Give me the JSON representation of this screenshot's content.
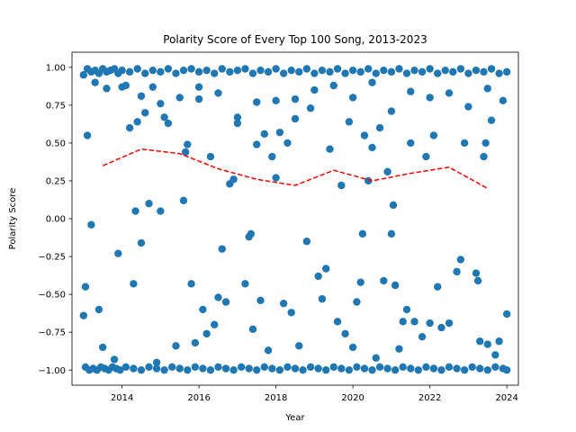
{
  "chart_data": {
    "type": "scatter",
    "title": "Polarity Score of Every Top 100 Song, 2013-2023",
    "xlabel": "Year",
    "ylabel": "Polarity Score",
    "xlim": [
      2012.7,
      2024.3
    ],
    "ylim": [
      -1.1,
      1.1
    ],
    "x_ticks": [
      2014,
      2016,
      2018,
      2020,
      2022,
      2024
    ],
    "y_ticks": [
      -1.0,
      -0.75,
      -0.5,
      -0.25,
      0.0,
      0.25,
      0.5,
      0.75,
      1.0
    ],
    "y_tick_labels": [
      "−1.00",
      "−0.75",
      "−0.50",
      "−0.25",
      "0.00",
      "0.25",
      "0.50",
      "0.75",
      "1.00"
    ],
    "grid": false,
    "colors": {
      "points": "#1f77b4",
      "trend": "#ff0000"
    },
    "series": [
      {
        "kind": "scatter",
        "points": [
          [
            2013.0,
            0.95
          ],
          [
            2013.1,
            0.99
          ],
          [
            2013.2,
            0.97
          ],
          [
            2013.3,
            0.98
          ],
          [
            2013.4,
            0.96
          ],
          [
            2013.5,
            0.99
          ],
          [
            2013.6,
            0.97
          ],
          [
            2013.7,
            0.98
          ],
          [
            2013.8,
            0.99
          ],
          [
            2013.9,
            0.96
          ],
          [
            2014.0,
            0.98
          ],
          [
            2014.2,
            0.97
          ],
          [
            2014.4,
            0.99
          ],
          [
            2014.6,
            0.96
          ],
          [
            2014.8,
            0.98
          ],
          [
            2015.0,
            0.97
          ],
          [
            2015.2,
            0.99
          ],
          [
            2015.4,
            0.96
          ],
          [
            2015.6,
            0.98
          ],
          [
            2015.8,
            0.99
          ],
          [
            2016.0,
            0.97
          ],
          [
            2016.2,
            0.98
          ],
          [
            2016.4,
            0.96
          ],
          [
            2016.6,
            0.99
          ],
          [
            2016.8,
            0.97
          ],
          [
            2017.0,
            0.98
          ],
          [
            2017.2,
            0.99
          ],
          [
            2017.4,
            0.96
          ],
          [
            2017.6,
            0.98
          ],
          [
            2017.8,
            0.97
          ],
          [
            2018.0,
            0.99
          ],
          [
            2018.2,
            0.96
          ],
          [
            2018.4,
            0.98
          ],
          [
            2018.6,
            0.97
          ],
          [
            2018.8,
            0.99
          ],
          [
            2019.0,
            0.96
          ],
          [
            2019.2,
            0.98
          ],
          [
            2019.4,
            0.97
          ],
          [
            2019.6,
            0.99
          ],
          [
            2019.8,
            0.96
          ],
          [
            2020.0,
            0.98
          ],
          [
            2020.2,
            0.97
          ],
          [
            2020.4,
            0.99
          ],
          [
            2020.6,
            0.96
          ],
          [
            2020.8,
            0.98
          ],
          [
            2021.0,
            0.97
          ],
          [
            2021.2,
            0.99
          ],
          [
            2021.4,
            0.96
          ],
          [
            2021.6,
            0.98
          ],
          [
            2021.8,
            0.97
          ],
          [
            2022.0,
            0.99
          ],
          [
            2022.2,
            0.96
          ],
          [
            2022.4,
            0.98
          ],
          [
            2022.6,
            0.97
          ],
          [
            2022.8,
            0.99
          ],
          [
            2023.0,
            0.96
          ],
          [
            2023.2,
            0.98
          ],
          [
            2023.4,
            0.97
          ],
          [
            2023.6,
            0.99
          ],
          [
            2023.8,
            0.96
          ],
          [
            2024.0,
            0.97
          ],
          [
            2013.05,
            -0.98
          ],
          [
            2013.15,
            -1.0
          ],
          [
            2013.25,
            -0.99
          ],
          [
            2013.35,
            -1.0
          ],
          [
            2013.45,
            -0.98
          ],
          [
            2013.55,
            -0.99
          ],
          [
            2013.65,
            -1.0
          ],
          [
            2013.75,
            -0.98
          ],
          [
            2013.85,
            -0.99
          ],
          [
            2013.95,
            -1.0
          ],
          [
            2014.1,
            -0.98
          ],
          [
            2014.3,
            -0.99
          ],
          [
            2014.5,
            -1.0
          ],
          [
            2014.7,
            -0.98
          ],
          [
            2014.9,
            -0.99
          ],
          [
            2015.1,
            -1.0
          ],
          [
            2015.3,
            -0.98
          ],
          [
            2015.5,
            -0.99
          ],
          [
            2015.7,
            -1.0
          ],
          [
            2015.9,
            -0.98
          ],
          [
            2016.1,
            -0.99
          ],
          [
            2016.3,
            -1.0
          ],
          [
            2016.5,
            -0.98
          ],
          [
            2016.7,
            -0.99
          ],
          [
            2016.9,
            -1.0
          ],
          [
            2017.1,
            -0.98
          ],
          [
            2017.3,
            -0.99
          ],
          [
            2017.5,
            -1.0
          ],
          [
            2017.7,
            -0.98
          ],
          [
            2017.9,
            -0.99
          ],
          [
            2018.1,
            -1.0
          ],
          [
            2018.3,
            -0.98
          ],
          [
            2018.5,
            -0.99
          ],
          [
            2018.7,
            -1.0
          ],
          [
            2018.9,
            -0.98
          ],
          [
            2019.1,
            -0.99
          ],
          [
            2019.3,
            -1.0
          ],
          [
            2019.5,
            -0.98
          ],
          [
            2019.7,
            -0.99
          ],
          [
            2019.9,
            -1.0
          ],
          [
            2020.1,
            -0.98
          ],
          [
            2020.3,
            -0.99
          ],
          [
            2020.5,
            -1.0
          ],
          [
            2020.7,
            -0.98
          ],
          [
            2020.9,
            -0.99
          ],
          [
            2021.1,
            -1.0
          ],
          [
            2021.3,
            -0.98
          ],
          [
            2021.5,
            -0.99
          ],
          [
            2021.7,
            -1.0
          ],
          [
            2021.9,
            -0.98
          ],
          [
            2022.1,
            -0.99
          ],
          [
            2022.3,
            -1.0
          ],
          [
            2022.5,
            -0.98
          ],
          [
            2022.7,
            -0.99
          ],
          [
            2022.9,
            -1.0
          ],
          [
            2023.1,
            -0.98
          ],
          [
            2023.3,
            -0.99
          ],
          [
            2023.5,
            -1.0
          ],
          [
            2023.7,
            -0.98
          ],
          [
            2023.9,
            -0.99
          ],
          [
            2024.0,
            -1.0
          ],
          [
            2013.0,
            -0.64
          ],
          [
            2013.05,
            -0.45
          ],
          [
            2013.1,
            0.55
          ],
          [
            2013.2,
            -0.04
          ],
          [
            2013.4,
            -0.6
          ],
          [
            2013.5,
            -0.85
          ],
          [
            2013.8,
            -0.93
          ],
          [
            2013.9,
            -0.23
          ],
          [
            2014.0,
            0.87
          ],
          [
            2014.2,
            0.6
          ],
          [
            2014.3,
            -0.43
          ],
          [
            2014.35,
            0.05
          ],
          [
            2014.4,
            0.64
          ],
          [
            2014.5,
            -0.16
          ],
          [
            2014.6,
            0.7
          ],
          [
            2014.7,
            0.1
          ],
          [
            2014.8,
            0.87
          ],
          [
            2014.9,
            -0.95
          ],
          [
            2015.0,
            0.05
          ],
          [
            2015.1,
            0.67
          ],
          [
            2015.2,
            0.63
          ],
          [
            2015.4,
            -0.84
          ],
          [
            2015.6,
            0.12
          ],
          [
            2015.65,
            0.44
          ],
          [
            2015.7,
            0.49
          ],
          [
            2015.8,
            -0.43
          ],
          [
            2015.9,
            -0.82
          ],
          [
            2016.0,
            0.87
          ],
          [
            2016.1,
            -0.6
          ],
          [
            2016.2,
            -0.76
          ],
          [
            2016.3,
            0.41
          ],
          [
            2016.4,
            -0.7
          ],
          [
            2016.5,
            -0.52
          ],
          [
            2016.6,
            -0.2
          ],
          [
            2016.7,
            -0.55
          ],
          [
            2016.8,
            0.23
          ],
          [
            2016.9,
            0.26
          ],
          [
            2017.0,
            0.67
          ],
          [
            2017.2,
            -0.43
          ],
          [
            2017.3,
            -0.12
          ],
          [
            2017.35,
            -0.1
          ],
          [
            2017.4,
            -0.73
          ],
          [
            2017.5,
            0.49
          ],
          [
            2017.6,
            -0.54
          ],
          [
            2017.7,
            0.56
          ],
          [
            2017.8,
            -0.87
          ],
          [
            2017.9,
            0.41
          ],
          [
            2018.0,
            0.27
          ],
          [
            2018.1,
            0.57
          ],
          [
            2018.2,
            -0.56
          ],
          [
            2018.3,
            0.5
          ],
          [
            2018.4,
            -0.62
          ],
          [
            2018.5,
            0.66
          ],
          [
            2018.6,
            -0.84
          ],
          [
            2018.8,
            -0.15
          ],
          [
            2018.9,
            0.73
          ],
          [
            2019.1,
            -0.38
          ],
          [
            2019.2,
            -0.53
          ],
          [
            2019.3,
            -0.33
          ],
          [
            2019.4,
            0.46
          ],
          [
            2019.6,
            -0.68
          ],
          [
            2019.7,
            0.22
          ],
          [
            2019.8,
            -0.76
          ],
          [
            2019.9,
            0.64
          ],
          [
            2020.0,
            -0.85
          ],
          [
            2020.1,
            -0.55
          ],
          [
            2020.2,
            -0.42
          ],
          [
            2020.25,
            -0.1
          ],
          [
            2020.3,
            0.55
          ],
          [
            2020.4,
            0.25
          ],
          [
            2020.5,
            0.47
          ],
          [
            2020.6,
            -0.92
          ],
          [
            2020.7,
            0.6
          ],
          [
            2020.8,
            -0.41
          ],
          [
            2020.9,
            0.31
          ],
          [
            2021.0,
            -0.1
          ],
          [
            2021.05,
            0.09
          ],
          [
            2021.1,
            -0.44
          ],
          [
            2021.2,
            -0.86
          ],
          [
            2021.3,
            -0.68
          ],
          [
            2021.4,
            -0.6
          ],
          [
            2021.5,
            0.5
          ],
          [
            2021.6,
            -0.68
          ],
          [
            2021.8,
            -0.78
          ],
          [
            2021.9,
            0.41
          ],
          [
            2022.0,
            -0.69
          ],
          [
            2022.1,
            0.55
          ],
          [
            2022.2,
            -0.45
          ],
          [
            2022.3,
            -0.72
          ],
          [
            2022.5,
            -0.69
          ],
          [
            2022.7,
            -0.35
          ],
          [
            2022.8,
            -0.27
          ],
          [
            2022.9,
            0.5
          ],
          [
            2023.2,
            -0.36
          ],
          [
            2023.25,
            -0.41
          ],
          [
            2023.3,
            -0.81
          ],
          [
            2023.4,
            0.41
          ],
          [
            2023.45,
            0.5
          ],
          [
            2023.5,
            -0.83
          ],
          [
            2023.6,
            0.65
          ],
          [
            2023.7,
            -0.9
          ],
          [
            2023.8,
            -0.81
          ],
          [
            2023.9,
            0.78
          ],
          [
            2024.0,
            -0.63
          ],
          [
            2013.3,
            0.9
          ],
          [
            2013.6,
            0.86
          ],
          [
            2014.1,
            0.88
          ],
          [
            2014.5,
            0.81
          ],
          [
            2015.0,
            0.76
          ],
          [
            2015.5,
            0.8
          ],
          [
            2016.0,
            0.79
          ],
          [
            2016.5,
            0.83
          ],
          [
            2017.0,
            0.63
          ],
          [
            2017.5,
            0.77
          ],
          [
            2018.0,
            0.78
          ],
          [
            2018.5,
            0.79
          ],
          [
            2019.0,
            0.85
          ],
          [
            2019.5,
            0.88
          ],
          [
            2020.0,
            0.8
          ],
          [
            2020.5,
            0.9
          ],
          [
            2021.0,
            0.71
          ],
          [
            2021.5,
            0.84
          ],
          [
            2022.0,
            0.8
          ],
          [
            2022.5,
            0.83
          ],
          [
            2023.0,
            0.74
          ],
          [
            2023.5,
            0.86
          ]
        ]
      },
      {
        "kind": "line",
        "style": "dashed",
        "points": [
          [
            2013.5,
            0.35
          ],
          [
            2014.5,
            0.46
          ],
          [
            2015.5,
            0.43
          ],
          [
            2016.5,
            0.33
          ],
          [
            2017.5,
            0.26
          ],
          [
            2018.5,
            0.22
          ],
          [
            2019.5,
            0.32
          ],
          [
            2020.5,
            0.25
          ],
          [
            2021.5,
            0.3
          ],
          [
            2022.5,
            0.34
          ],
          [
            2023.5,
            0.2
          ]
        ]
      }
    ]
  }
}
